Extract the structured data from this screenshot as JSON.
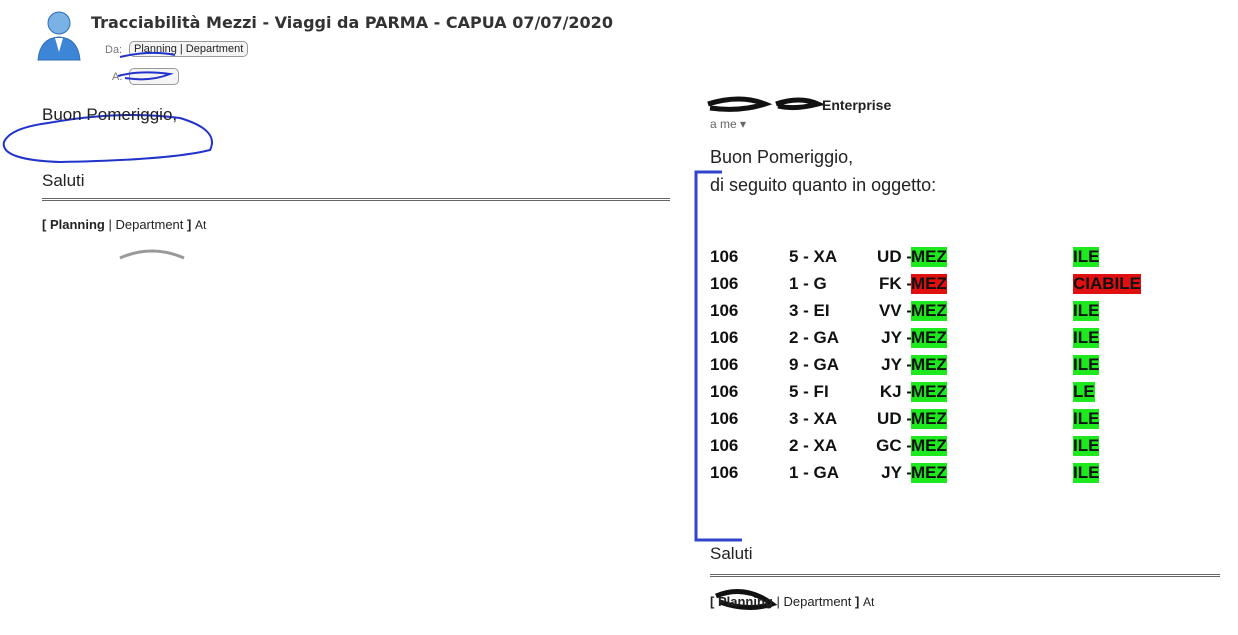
{
  "header": {
    "title": "Tracciabilità Mezzi - Viaggi da PARMA - CAPUA 07/07/2020",
    "from_label": "Da:",
    "from": "Planning | Department",
    "to_label": "A:"
  },
  "left_message": {
    "greeting": "Buon Pomeriggio,",
    "closing": "Saluti",
    "signature": {
      "open": "[",
      "name": "Planning",
      "sep": "| Department",
      "close": "]",
      "at": "At"
    }
  },
  "right_message": {
    "sender": "Enterprise",
    "recipient": "a me",
    "greeting": "Buon Pomeriggio,",
    "intro": "di seguito quanto in oggetto:",
    "rows": [
      {
        "a": "106",
        "b": "5 - XA",
        "c": "UD -",
        "d": "MEZ",
        "e": "ILE",
        "status": "green"
      },
      {
        "a": "106",
        "b": "1 - G",
        "c": "FK -",
        "d": "MEZ",
        "e": "CIABILE",
        "status": "red"
      },
      {
        "a": "106",
        "b": "3 - EI",
        "c": "VV -",
        "d": "MEZ",
        "e": "ILE",
        "status": "green"
      },
      {
        "a": "106",
        "b": "2 - GA",
        "c": "JY -",
        "d": "MEZ",
        "e": "ILE",
        "status": "green"
      },
      {
        "a": "106",
        "b": "9 - GA",
        "c": "JY -",
        "d": "MEZ",
        "e": "ILE",
        "status": "green"
      },
      {
        "a": "106",
        "b": "5 - FI",
        "c": "KJ -",
        "d": "MEZ",
        "e": "LE",
        "status": "green"
      },
      {
        "a": "106",
        "b": "3 - XA",
        "c": "UD -",
        "d": "MEZ",
        "e": "ILE",
        "status": "green"
      },
      {
        "a": "106",
        "b": "2 - XA",
        "c": "GC -",
        "d": "MEZ",
        "e": "ILE",
        "status": "green"
      },
      {
        "a": "106",
        "b": "1 - GA",
        "c": "JY -",
        "d": "MEZ",
        "e": "ILE",
        "status": "green"
      }
    ],
    "closing": "Saluti",
    "signature": {
      "open": "[",
      "name": "Planning",
      "sep": "| Department",
      "close": "]",
      "at": "At"
    }
  }
}
